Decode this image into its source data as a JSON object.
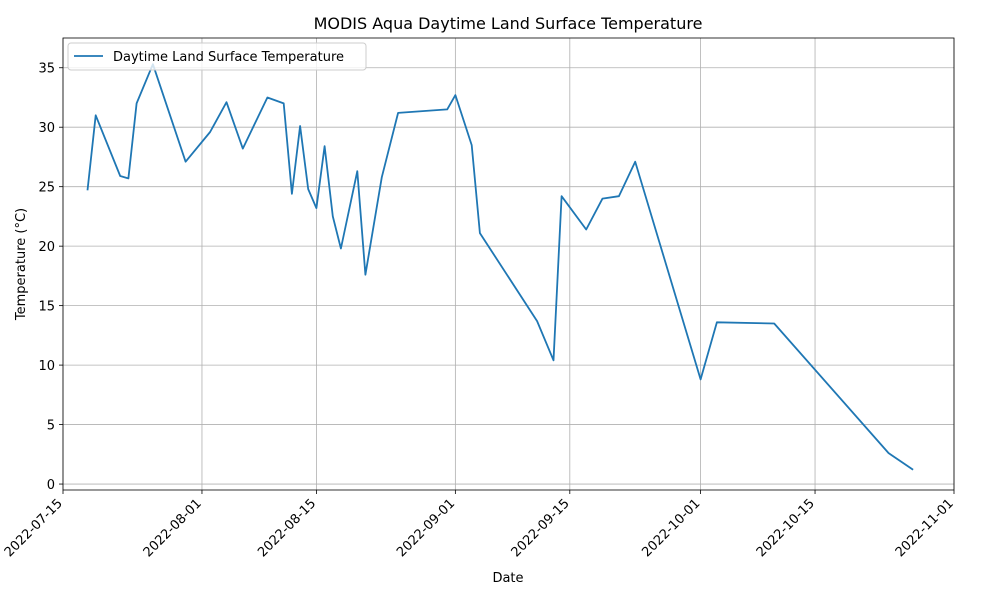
{
  "chart_data": {
    "type": "line",
    "title": "MODIS Aqua Daytime Land Surface Temperature",
    "xlabel": "Date",
    "ylabel": "Temperature (°C)",
    "xlim": [
      "2022-07-15",
      "2022-11-01"
    ],
    "ylim": [
      -0.5,
      37.5
    ],
    "grid": true,
    "legend_position": "top-left",
    "x_ticks": [
      "2022-07-15",
      "2022-08-01",
      "2022-08-15",
      "2022-09-01",
      "2022-09-15",
      "2022-10-01",
      "2022-10-15",
      "2022-11-01"
    ],
    "y_ticks": [
      0,
      5,
      10,
      15,
      20,
      25,
      30,
      35
    ],
    "series": [
      {
        "name": "Daytime Land Surface Temperature",
        "color": "#1f77b4",
        "x": [
          "2022-07-18",
          "2022-07-19",
          "2022-07-22",
          "2022-07-23",
          "2022-07-24",
          "2022-07-26",
          "2022-07-30",
          "2022-08-02",
          "2022-08-04",
          "2022-08-06",
          "2022-08-09",
          "2022-08-11",
          "2022-08-12",
          "2022-08-13",
          "2022-08-14",
          "2022-08-15",
          "2022-08-16",
          "2022-08-17",
          "2022-08-18",
          "2022-08-20",
          "2022-08-21",
          "2022-08-23",
          "2022-08-25",
          "2022-08-31",
          "2022-09-01",
          "2022-09-03",
          "2022-09-04",
          "2022-09-11",
          "2022-09-13",
          "2022-09-14",
          "2022-09-17",
          "2022-09-19",
          "2022-09-21",
          "2022-09-23",
          "2022-10-01",
          "2022-10-03",
          "2022-10-10",
          "2022-10-24",
          "2022-10-27"
        ],
        "y": [
          24.7,
          31.0,
          25.9,
          25.7,
          32.0,
          35.3,
          27.1,
          29.6,
          32.1,
          28.2,
          32.5,
          32.0,
          24.4,
          30.1,
          24.8,
          23.2,
          28.4,
          22.5,
          19.8,
          26.3,
          17.6,
          25.8,
          31.2,
          31.5,
          32.7,
          28.5,
          21.1,
          13.7,
          10.4,
          24.2,
          21.4,
          24.0,
          24.2,
          27.1,
          8.8,
          13.6,
          13.5,
          2.6,
          1.2
        ]
      }
    ]
  }
}
